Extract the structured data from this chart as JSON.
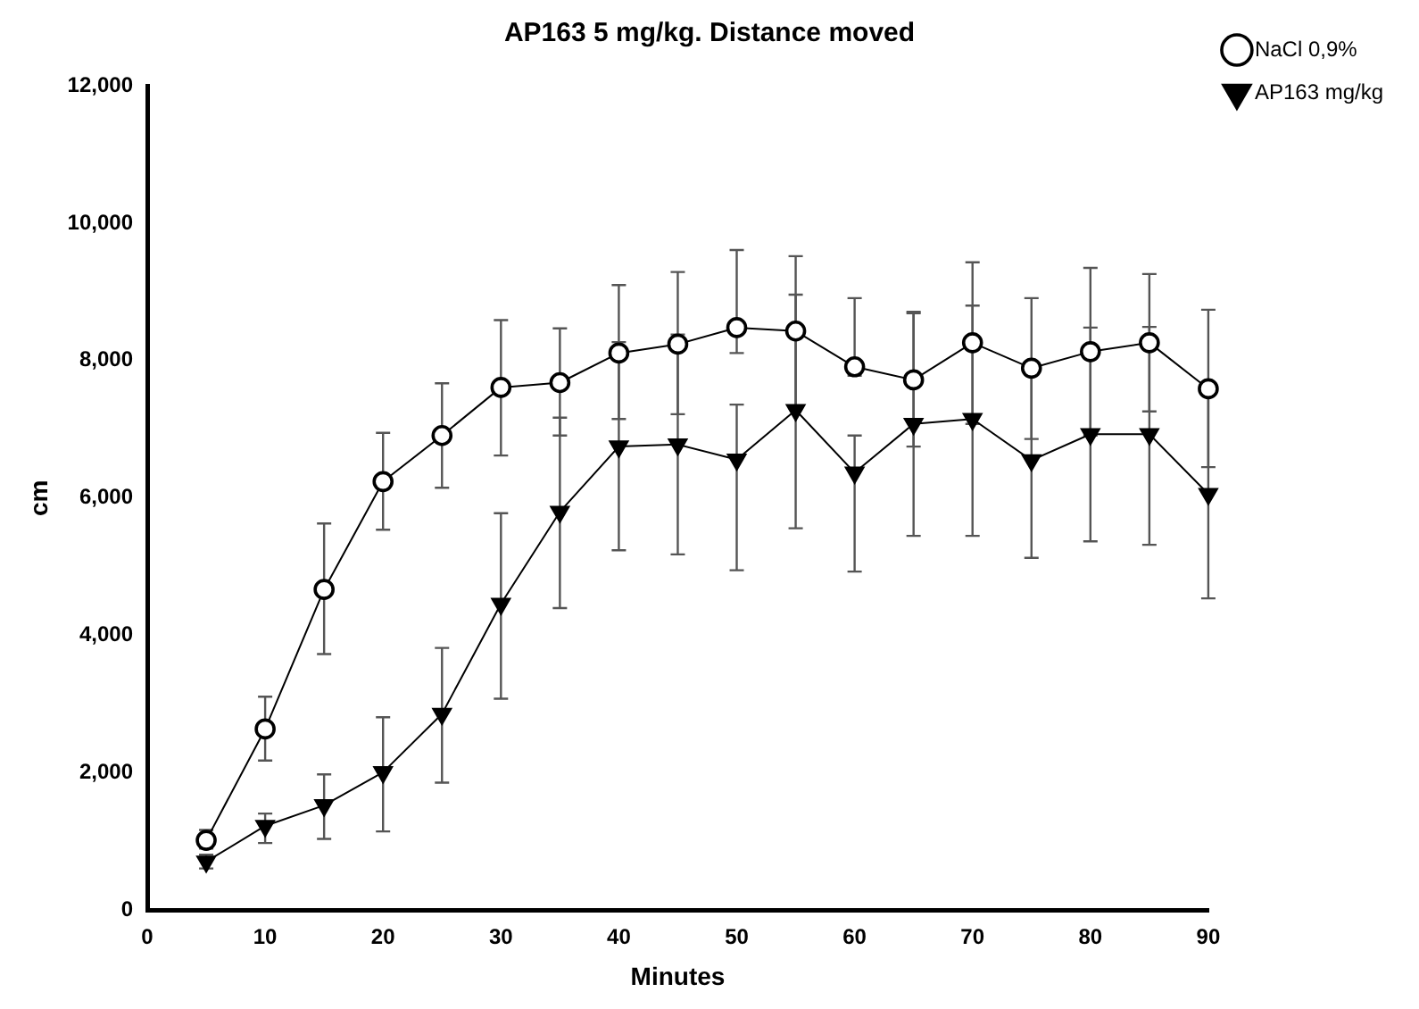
{
  "chart_data": {
    "type": "line",
    "title": "AP163 5 mg/kg. Distance moved",
    "xlabel": "Minutes",
    "ylabel": "cm",
    "x": [
      5,
      10,
      15,
      20,
      25,
      30,
      35,
      40,
      45,
      50,
      55,
      60,
      65,
      70,
      75,
      80,
      85,
      90
    ],
    "xlim": [
      0,
      90
    ],
    "xticks": [
      0,
      10,
      20,
      30,
      40,
      50,
      60,
      70,
      80,
      90
    ],
    "ylim": [
      0,
      12000
    ],
    "yticks": [
      0,
      {
        "value": 2000,
        "label": "2,000"
      },
      {
        "value": 4000,
        "label": "4,000"
      },
      {
        "value": 6000,
        "label": "6,000"
      },
      {
        "value": 8000,
        "label": "8,000"
      },
      {
        "value": 10000,
        "label": "10,000"
      },
      {
        "value": 12000,
        "label": "12,000"
      }
    ],
    "grid": false,
    "legend": "top right",
    "line_style": "solid",
    "series": [
      {
        "name": "NaCl 0,9%",
        "color": "#000000",
        "marker": "circle",
        "values": [
          1020,
          2640,
          4670,
          6240,
          6910,
          7610,
          7680,
          8110,
          8240,
          8480,
          8430,
          7910,
          7720,
          8260,
          7890,
          8130,
          8260,
          7590
        ],
        "errors": [
          [
            900,
            1170
          ],
          [
            2180,
            3110
          ],
          [
            3730,
            5630
          ],
          [
            5540,
            6950
          ],
          [
            6150,
            7670
          ],
          [
            6620,
            8590
          ],
          [
            6910,
            8470
          ],
          [
            7150,
            9100
          ],
          [
            7220,
            9290
          ],
          [
            8110,
            9610
          ],
          [
            7340,
            9520
          ],
          [
            7780,
            8910
          ],
          [
            6750,
            8690
          ],
          [
            7080,
            9430
          ],
          [
            6860,
            8910
          ],
          [
            6910,
            9350
          ],
          [
            7260,
            9260
          ],
          [
            6450,
            8740
          ]
        ]
      },
      {
        "name": "AP163 mg/kg",
        "color": "#000000",
        "marker": "triangle",
        "values": [
          710,
          1230,
          1530,
          2010,
          2860,
          4460,
          5800,
          6750,
          6780,
          6560,
          7280,
          6370,
          7080,
          7150,
          6550,
          6930,
          6930,
          6060
        ],
        "errors": [
          [
            610,
            810
          ],
          [
            980,
            1410
          ],
          [
            1040,
            1980
          ],
          [
            1150,
            2810
          ],
          [
            1860,
            3820
          ],
          [
            3080,
            5780
          ],
          [
            4400,
            7170
          ],
          [
            5240,
            8270
          ],
          [
            5180,
            8380
          ],
          [
            4950,
            7360
          ],
          [
            5560,
            8960
          ],
          [
            4930,
            6910
          ],
          [
            5450,
            8710
          ],
          [
            5450,
            8800
          ],
          [
            5130,
            7960
          ],
          [
            5370,
            8480
          ],
          [
            5320,
            8490
          ],
          [
            4540,
            7570
          ]
        ]
      }
    ]
  }
}
